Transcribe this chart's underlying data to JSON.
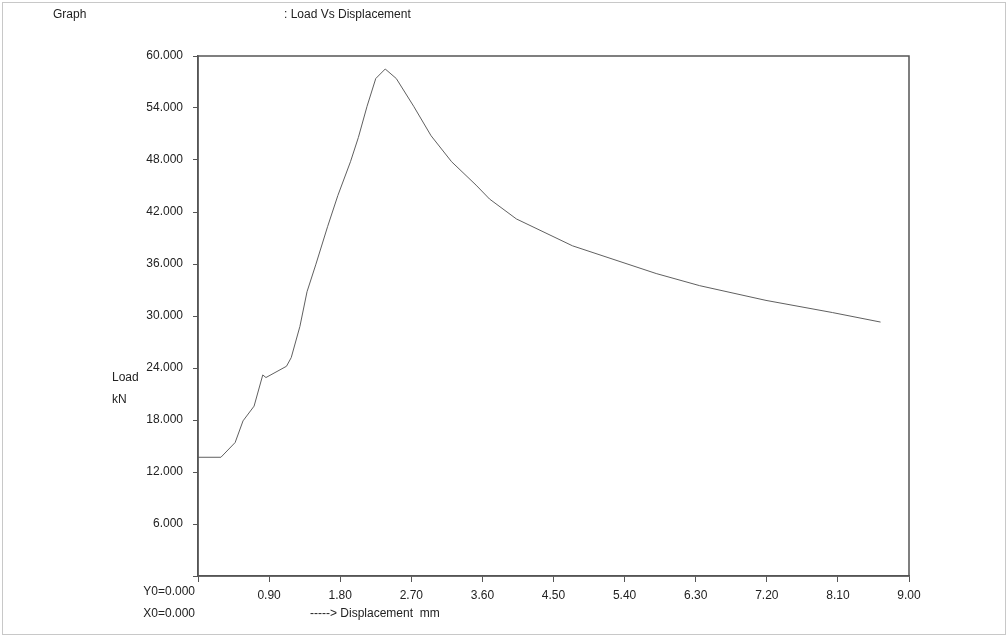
{
  "chart_data": {
    "type": "line",
    "title": ": Load Vs Displacement",
    "xlabel": "-----> Displacement  mm",
    "ylabel": "Load kN",
    "annotations": [
      "Graph",
      "Y0=0.000",
      "X0=0.000"
    ],
    "series": [
      {
        "color": "#606060",
        "x": [
          0,
          0.29,
          0.47,
          0.57,
          0.71,
          0.82,
          0.86,
          1.12,
          1.18,
          1.29,
          1.38,
          1.49,
          1.64,
          1.77,
          1.93,
          2.03,
          2.14,
          2.25,
          2.37,
          2.51,
          2.73,
          2.95,
          3.21,
          3.52,
          3.69,
          4.03,
          4.74,
          5.8,
          6.35,
          7.19,
          8.03,
          8.64
        ],
        "values": [
          13.7,
          13.7,
          15.4,
          17.9,
          19.6,
          23.2,
          22.9,
          24.2,
          25.2,
          28.8,
          32.8,
          35.9,
          40.3,
          43.9,
          47.8,
          50.6,
          54.2,
          57.4,
          58.5,
          57.4,
          54.2,
          50.8,
          47.8,
          45.1,
          43.5,
          41.2,
          38.1,
          34.9,
          33.5,
          31.8,
          30.4,
          29.3
        ]
      }
    ],
    "xlim": [
      0,
      9
    ],
    "ylim": [
      0,
      60
    ],
    "xticks": [
      {
        "value": 0,
        "label": null
      },
      {
        "value": 0.9,
        "label": "0.90"
      },
      {
        "value": 1.8,
        "label": "1.80"
      },
      {
        "value": 2.7,
        "label": "2.70"
      },
      {
        "value": 3.6,
        "label": "3.60"
      },
      {
        "value": 4.5,
        "label": "4.50"
      },
      {
        "value": 5.4,
        "label": "5.40"
      },
      {
        "value": 6.3,
        "label": "6.30"
      },
      {
        "value": 7.2,
        "label": "7.20"
      },
      {
        "value": 8.1,
        "label": "8.10"
      },
      {
        "value": 9,
        "label": "9.00"
      }
    ],
    "yticks": [
      {
        "value": 0,
        "label": null
      },
      {
        "value": 6,
        "label": "6.000"
      },
      {
        "value": 12,
        "label": "12.000"
      },
      {
        "value": 18,
        "label": "18.000"
      },
      {
        "value": 24,
        "label": "24.000"
      },
      {
        "value": 30,
        "label": "30.000"
      },
      {
        "value": 36,
        "label": "36.000"
      },
      {
        "value": 42,
        "label": "42.000"
      },
      {
        "value": 48,
        "label": "48.000"
      },
      {
        "value": 54,
        "label": "54.000"
      },
      {
        "value": 60,
        "label": "60.000"
      }
    ],
    "grid": false,
    "legend": false,
    "marker": "none",
    "line_style": "solid"
  }
}
